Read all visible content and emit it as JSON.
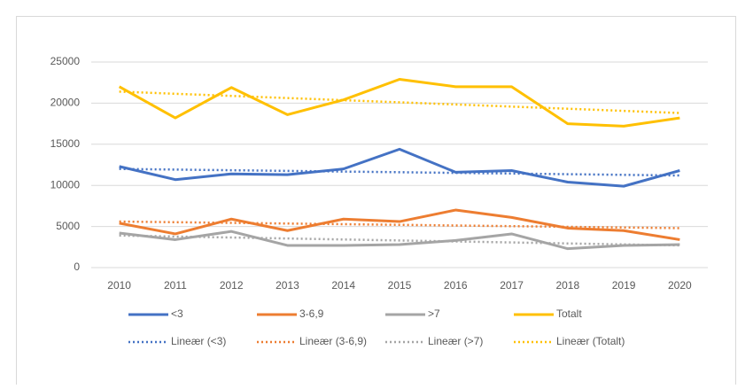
{
  "chart_data": {
    "type": "line",
    "categories": [
      "2010",
      "2011",
      "2012",
      "2013",
      "2014",
      "2015",
      "2016",
      "2017",
      "2018",
      "2019",
      "2020"
    ],
    "ylim": [
      0,
      25000
    ],
    "yticks": [
      0,
      5000,
      10000,
      15000,
      20000,
      25000
    ],
    "grid": true,
    "series": [
      {
        "name": "<3",
        "color": "#4472c4",
        "style": "solid",
        "values": [
          12300,
          10700,
          11400,
          11300,
          12000,
          14400,
          11600,
          11800,
          10400,
          9900,
          11800
        ]
      },
      {
        "name": "3-6,9",
        "color": "#ed7d31",
        "style": "solid",
        "values": [
          5400,
          4100,
          5900,
          4500,
          5900,
          5600,
          7000,
          6100,
          4800,
          4500,
          3400
        ]
      },
      {
        "name": ">7",
        "color": "#a5a5a5",
        "style": "solid",
        "values": [
          4200,
          3400,
          4400,
          2700,
          2700,
          2800,
          3300,
          4100,
          2300,
          2700,
          2800
        ]
      },
      {
        "name": "Totalt",
        "color": "#ffc000",
        "style": "solid",
        "values": [
          22000,
          18200,
          21900,
          18600,
          20400,
          22900,
          22000,
          22000,
          17500,
          17200,
          18200
        ]
      },
      {
        "name": "Lineær (<3)",
        "color": "#4472c4",
        "style": "dotted",
        "values": [
          12000,
          11920,
          11840,
          11760,
          11680,
          11600,
          11520,
          11440,
          11360,
          11280,
          11200
        ]
      },
      {
        "name": "Lineær (3-6,9)",
        "color": "#ed7d31",
        "style": "dotted",
        "values": [
          5600,
          5520,
          5440,
          5360,
          5280,
          5200,
          5120,
          5040,
          4960,
          4880,
          4800
        ]
      },
      {
        "name": "Lineær (>7)",
        "color": "#a5a5a5",
        "style": "dotted",
        "values": [
          3900,
          3780,
          3660,
          3540,
          3420,
          3300,
          3180,
          3060,
          2940,
          2820,
          2700
        ]
      },
      {
        "name": "Lineær (Totalt)",
        "color": "#ffc000",
        "style": "dotted",
        "values": [
          21400,
          21140,
          20880,
          20620,
          20360,
          20100,
          19840,
          19580,
          19320,
          19060,
          18800
        ]
      }
    ]
  }
}
